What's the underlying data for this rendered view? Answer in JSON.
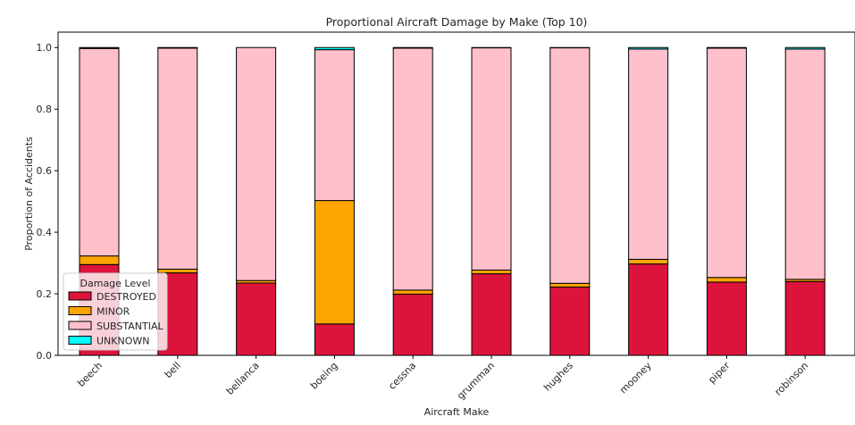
{
  "chart_data": {
    "type": "bar",
    "stacked": true,
    "title": "Proportional Aircraft Damage by Make (Top 10)",
    "xlabel": "Aircraft Make",
    "ylabel": "Proportion of Accidents",
    "ylim": [
      0,
      1.05
    ],
    "yticks": [
      "0.0",
      "0.2",
      "0.4",
      "0.6",
      "0.8",
      "1.0"
    ],
    "categories": [
      "beech",
      "bell",
      "bellanca",
      "boeing",
      "cessna",
      "grumman",
      "hughes",
      "mooney",
      "piper",
      "robinson"
    ],
    "series": [
      {
        "name": "DESTROYED",
        "color": "#dc143c",
        "values": [
          0.295,
          0.268,
          0.235,
          0.102,
          0.199,
          0.265,
          0.222,
          0.297,
          0.238,
          0.24
        ]
      },
      {
        "name": "MINOR",
        "color": "#ffa500",
        "values": [
          0.028,
          0.012,
          0.008,
          0.401,
          0.013,
          0.012,
          0.012,
          0.015,
          0.015,
          0.007
        ]
      },
      {
        "name": "SUBSTANTIAL",
        "color": "#ffc0cb",
        "values": [
          0.674,
          0.718,
          0.757,
          0.49,
          0.786,
          0.722,
          0.765,
          0.683,
          0.745,
          0.748
        ]
      },
      {
        "name": "UNKNOWN",
        "color": "#00ffff",
        "values": [
          0.003,
          0.002,
          0.0,
          0.007,
          0.002,
          0.001,
          0.001,
          0.005,
          0.002,
          0.005
        ]
      }
    ],
    "legend": {
      "title": "Damage Level",
      "placement": "lower-left"
    },
    "grid": false
  }
}
